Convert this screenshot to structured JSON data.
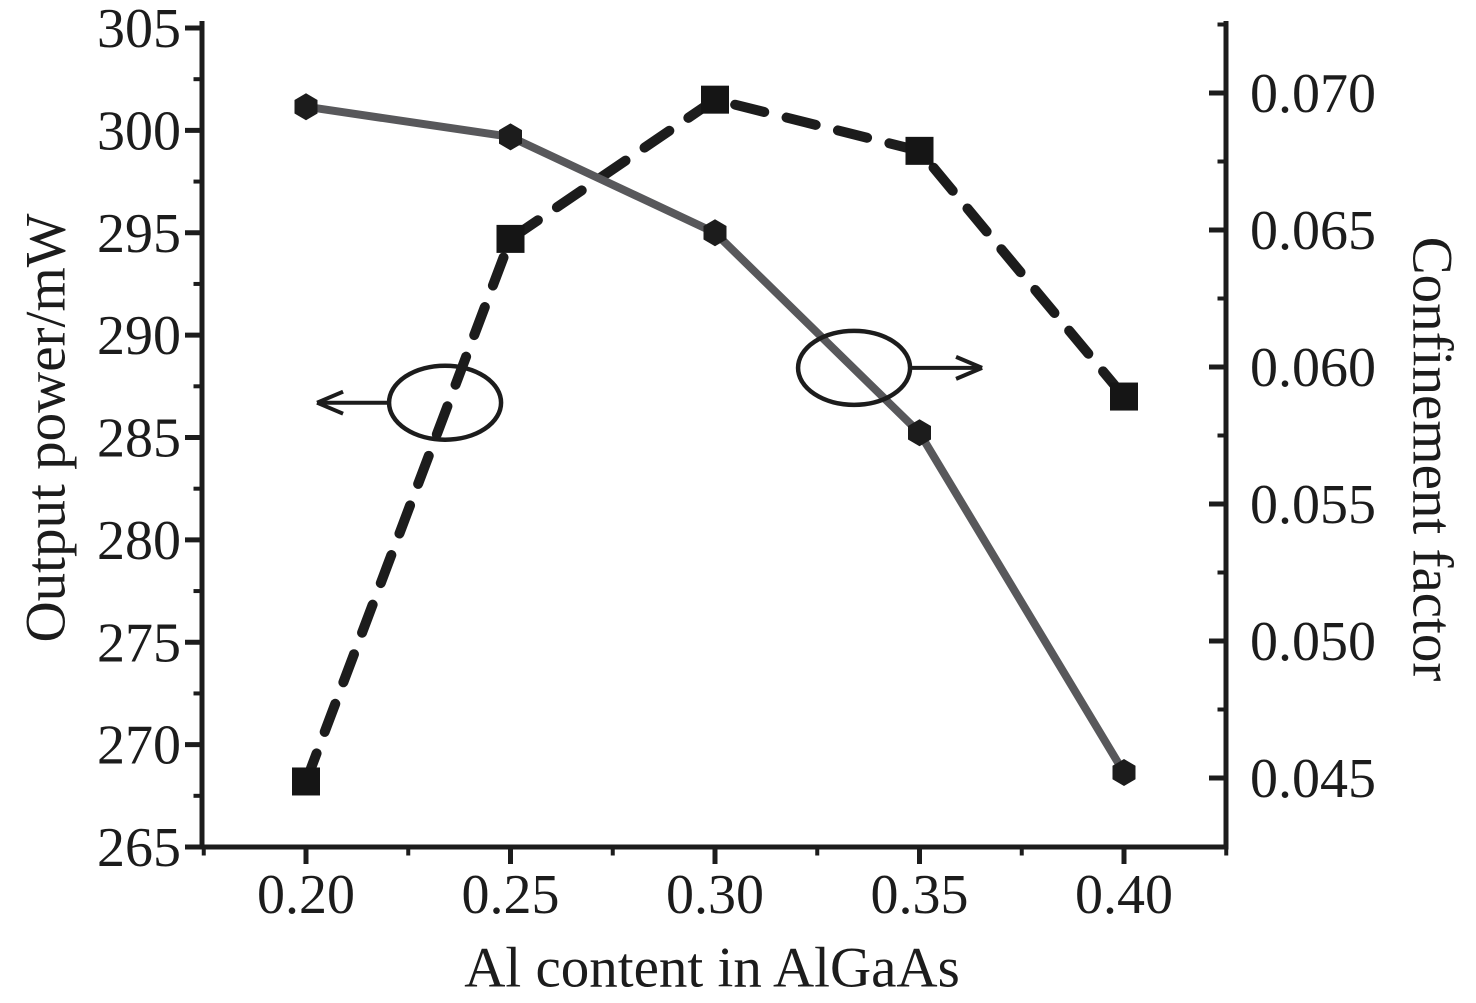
{
  "figure": {
    "background": "#ffffff",
    "text_color": "#1c1c1c"
  },
  "chart_data": {
    "type": "line",
    "title": "",
    "xlabel": "Al content in AlGaAs",
    "x": [
      0.2,
      0.25,
      0.3,
      0.35,
      0.4
    ],
    "x_tick_labels": [
      "0.20",
      "0.25",
      "0.30",
      "0.35",
      "0.40"
    ],
    "x_minor_ticks": [
      0.175,
      0.225,
      0.275,
      0.325,
      0.375,
      0.425
    ],
    "xlim": [
      0.174,
      0.425
    ],
    "grid": false,
    "legend": "none",
    "left_axis": {
      "label": "Output power/mW",
      "lim": [
        265,
        305
      ],
      "major_ticks": [
        265,
        270,
        275,
        280,
        285,
        290,
        295,
        300,
        305
      ],
      "major_tick_labels": [
        "265",
        "270",
        "275",
        "280",
        "285",
        "290",
        "295",
        "300",
        "305"
      ],
      "minor_ticks": [
        267.5,
        272.5,
        277.5,
        282.5,
        287.5,
        292.5,
        297.5,
        302.5
      ]
    },
    "right_axis": {
      "label": "Confinement factor",
      "lim": [
        0.0425,
        0.0724
      ],
      "major_ticks": [
        0.045,
        0.05,
        0.055,
        0.06,
        0.065,
        0.07
      ],
      "major_tick_labels": [
        "0.045",
        "0.050",
        "0.055",
        "0.060",
        "0.065",
        "0.070"
      ],
      "minor_ticks": [
        0.0425,
        0.0475,
        0.0525,
        0.0575,
        0.0625,
        0.0675,
        0.0725
      ]
    },
    "series": [
      {
        "name": "Output power",
        "axis": "left",
        "line_style": "dashed",
        "marker": "square",
        "line_color": "#1c1c1c",
        "marker_color": "#151515",
        "values": [
          268.2,
          294.7,
          301.5,
          299.0,
          287.0
        ]
      },
      {
        "name": "Confinement factor",
        "axis": "right",
        "line_style": "solid",
        "marker": "hexagon",
        "line_color": "#58585b",
        "marker_color": "#1c1c1c",
        "values": [
          0.0695,
          0.0684,
          0.0649,
          0.0576,
          0.0452
        ]
      }
    ],
    "annotations": [
      {
        "shape": "ellipse",
        "x": 0.234,
        "y_left_axis": 286.7,
        "arrow_direction": "left",
        "indicates": "dashed curve read on left axis"
      },
      {
        "shape": "ellipse",
        "x": 0.334,
        "y_left_axis": 288.4,
        "arrow_direction": "right",
        "indicates": "solid curve read on right axis"
      }
    ]
  }
}
